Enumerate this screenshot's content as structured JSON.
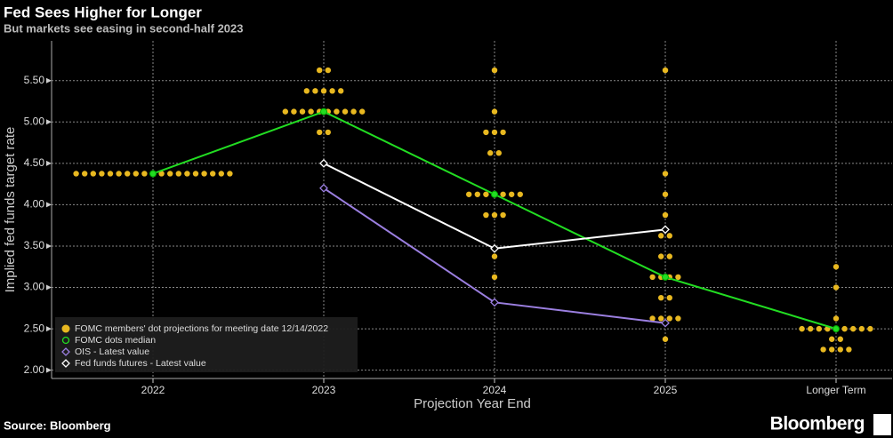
{
  "chart_data": {
    "type": "dot_projection",
    "title": "Fed Sees Higher for Longer",
    "subtitle": "But markets see easing in second-half 2023",
    "source": "Source: Bloomberg",
    "brand": "Bloomberg",
    "xlabel": "Projection Year End",
    "ylabel": "Implied fed funds target rate",
    "categories": [
      "2022",
      "2023",
      "2024",
      "2025",
      "Longer Term"
    ],
    "ylim": [
      1.9,
      5.98
    ],
    "yticks": [
      {
        "value": 2,
        "label": "2.00"
      },
      {
        "value": 2.5,
        "label": "2.50"
      },
      {
        "value": 3,
        "label": "3.00"
      },
      {
        "value": 3.5,
        "label": "3.50"
      },
      {
        "value": 4,
        "label": "4.00"
      },
      {
        "value": 4.5,
        "label": "4.50"
      },
      {
        "value": 5,
        "label": "5.00"
      },
      {
        "value": 5.5,
        "label": "5.50"
      }
    ],
    "grid": true,
    "legend": "lower left",
    "series": [
      {
        "name": "FOMC members' dot projections for meeting date 12/14/2022",
        "kind": "dots",
        "color": "#e8b820",
        "values": [
          [
            4.375,
            4.375,
            4.375,
            4.375,
            4.375,
            4.375,
            4.375,
            4.375,
            4.375,
            4.375,
            4.375,
            4.375,
            4.375,
            4.375,
            4.375,
            4.375,
            4.375,
            4.375,
            4.375
          ],
          [
            5.625,
            5.625,
            5.375,
            5.375,
            5.375,
            5.375,
            5.375,
            5.125,
            5.125,
            5.125,
            5.125,
            5.125,
            5.125,
            5.125,
            5.125,
            5.125,
            5.125,
            4.875,
            4.875
          ],
          [
            5.625,
            5.125,
            4.875,
            4.875,
            4.875,
            4.625,
            4.625,
            4.125,
            4.125,
            4.125,
            4.125,
            4.125,
            4.125,
            4.125,
            3.875,
            3.875,
            3.875,
            3.375,
            3.125
          ],
          [
            5.625,
            4.375,
            4.125,
            3.875,
            3.625,
            3.625,
            3.375,
            3.375,
            3.125,
            3.125,
            3.125,
            3.125,
            2.875,
            2.875,
            2.625,
            2.625,
            2.625,
            2.625,
            2.375
          ],
          [
            3.25,
            3.0,
            2.625,
            2.5,
            2.5,
            2.5,
            2.5,
            2.5,
            2.5,
            2.5,
            2.5,
            2.5,
            2.375,
            2.375,
            2.25,
            2.25,
            2.25,
            2.25
          ]
        ]
      },
      {
        "name": "FOMC dots median",
        "kind": "line",
        "marker": "circle",
        "color": "#22dd22",
        "values": [
          4.375,
          5.125,
          4.125,
          3.125,
          2.5
        ]
      },
      {
        "name": "OIS - Latest value",
        "kind": "line",
        "marker": "diamond",
        "color": "#9b7fe0",
        "values": [
          null,
          4.2,
          2.82,
          2.57,
          null
        ]
      },
      {
        "name": "Fed funds futures - Latest value",
        "kind": "line",
        "marker": "diamond",
        "color": "#ffffff",
        "values": [
          null,
          4.5,
          3.47,
          3.7,
          null
        ]
      }
    ]
  }
}
